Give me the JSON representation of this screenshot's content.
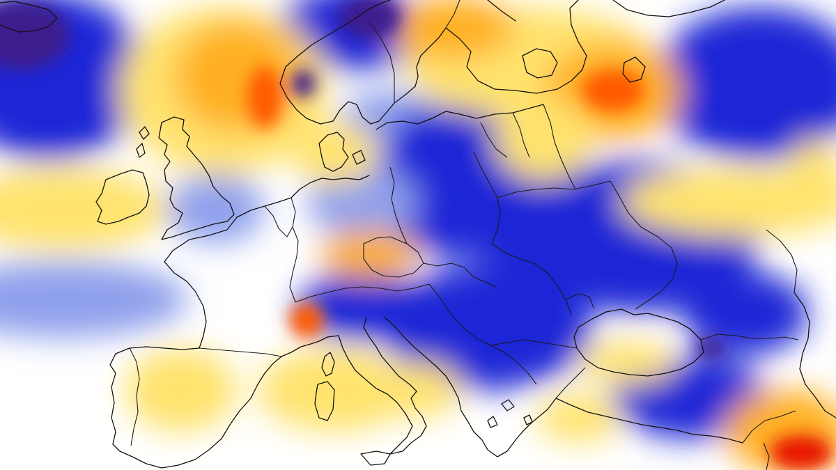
{
  "map": {
    "type": "anomaly-heatmap",
    "region": "Europe",
    "scale_colors": {
      "strong_negative": "#3c1a8c",
      "negative": "#1f26d6",
      "weak_negative": "#8fa0ec",
      "neutral": "#ffffff",
      "weak_positive": "#ffe36e",
      "positive": "#ffb020",
      "strong_positive": "#ff5a00",
      "extreme_positive": "#e81400"
    },
    "overlay": {
      "coastlines": true,
      "national_borders": true,
      "line_color": "#111111"
    },
    "labels": []
  }
}
